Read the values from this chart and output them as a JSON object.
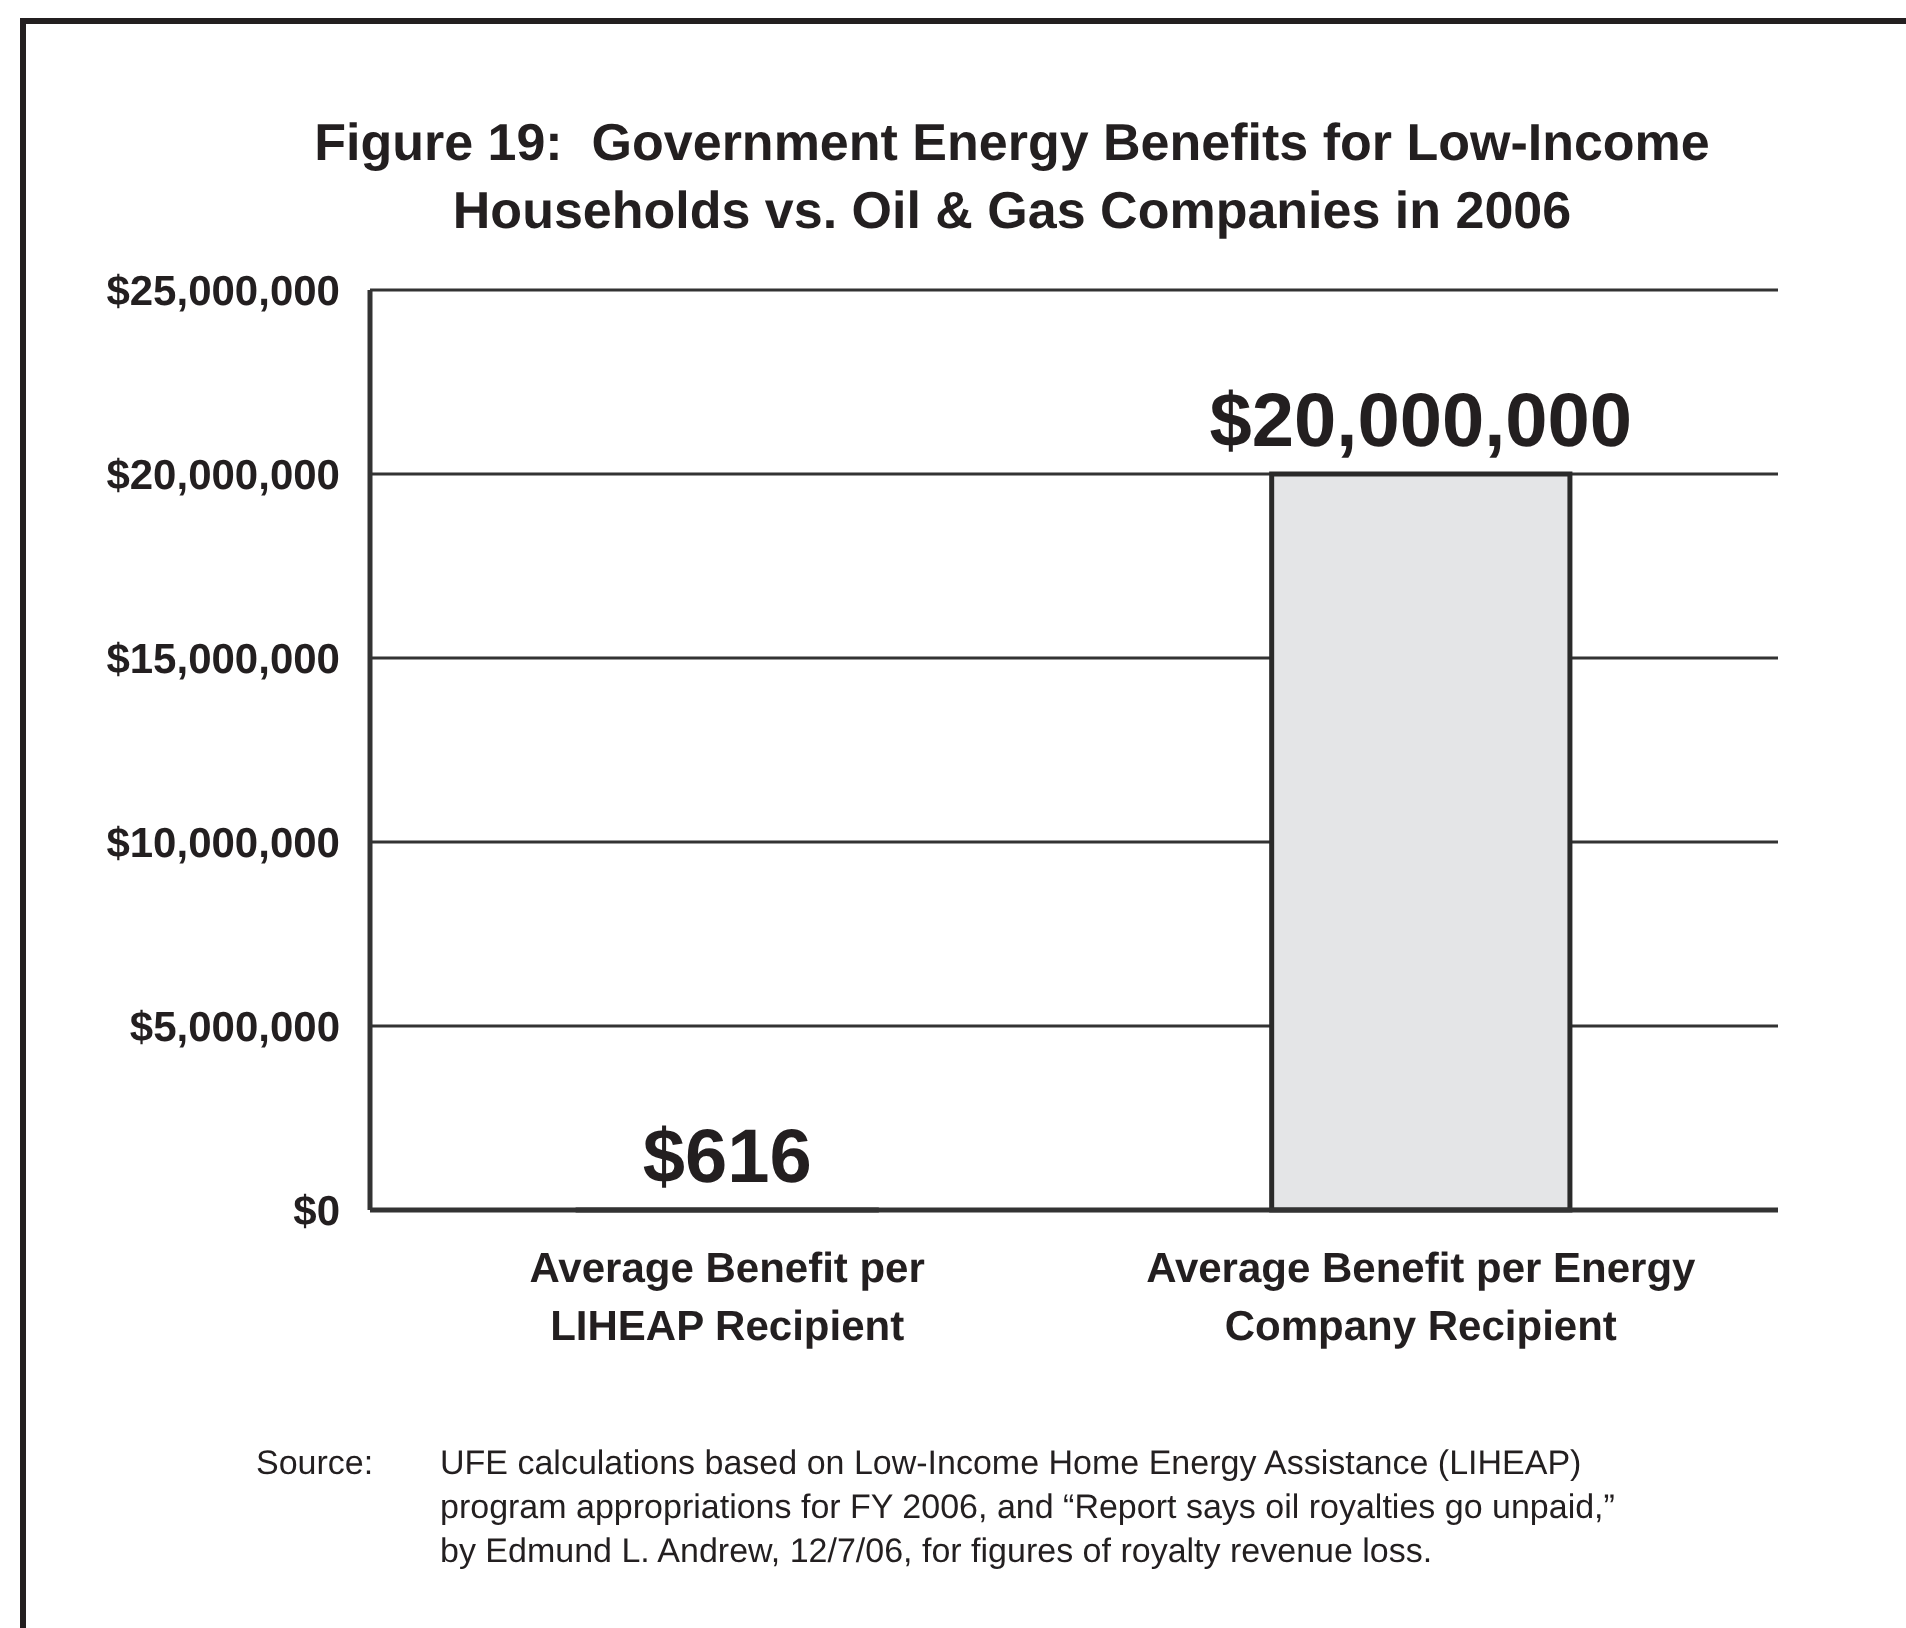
{
  "chart_data": {
    "type": "bar",
    "title": "Figure 19:  Government Energy Benefits for Low-Income\nHouseholds vs. Oil & Gas Companies in 2006",
    "categories": [
      "Average Benefit per\nLIHEAP Recipient",
      "Average Benefit per Energy\nCompany Recipient"
    ],
    "values": [
      616,
      20000000
    ],
    "value_labels": [
      "$616",
      "$20,000,000"
    ],
    "color": "#e4e5e7",
    "ylim": [
      0,
      25000000
    ],
    "yticks": [
      {
        "value": 0,
        "label": "$0"
      },
      {
        "value": 5000000,
        "label": "$5,000,000"
      },
      {
        "value": 10000000,
        "label": "$10,000,000"
      },
      {
        "value": 15000000,
        "label": "$15,000,000"
      },
      {
        "value": 20000000,
        "label": "$20,000,000"
      },
      {
        "value": 25000000,
        "label": "$25,000,000"
      }
    ],
    "grid": "y",
    "annotations": [
      "Source: UFE calculations based on Low-Income Home Energy Assistance (LIHEAP)\nprogram appropriations for FY 2006, and “Report says oil royalties go unpaid,”\nby Edmund L. Andrew, 12/7/06, for figures of royalty revenue loss."
    ]
  }
}
